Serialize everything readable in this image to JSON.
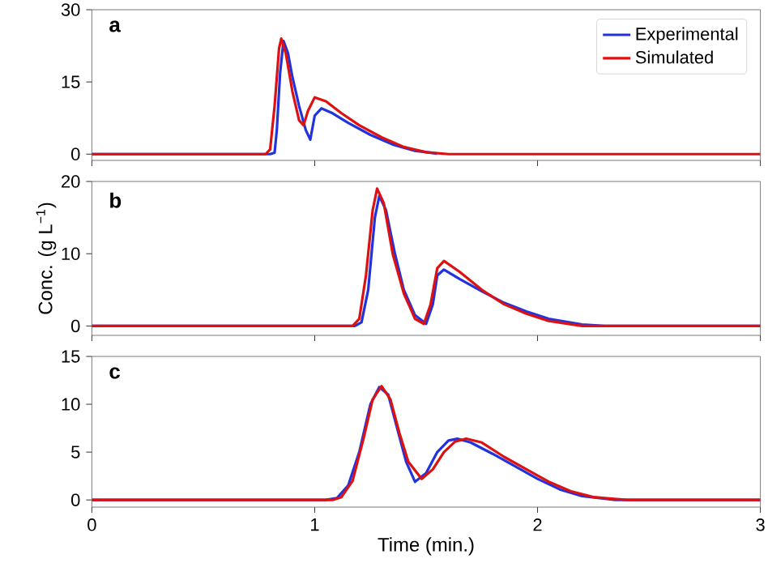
{
  "chart_data": [
    {
      "type": "line",
      "annotations": [
        "a"
      ],
      "xlim": [
        0,
        3
      ],
      "xticks": [
        0,
        1,
        2,
        3
      ],
      "ylim": [
        -1.3,
        30
      ],
      "yticks": [
        0,
        15,
        30
      ],
      "tick_labels": "y",
      "legend": "top right",
      "line_style": "solid",
      "series": [
        {
          "name": "Experimental",
          "color": "#2233dd",
          "x": [
            0,
            0.8,
            0.82,
            0.83,
            0.845,
            0.86,
            0.88,
            0.9,
            0.93,
            0.96,
            0.98,
            1.0,
            1.03,
            1.08,
            1.15,
            1.25,
            1.35,
            1.45,
            1.55
          ],
          "values": [
            0,
            0,
            0.3,
            5,
            17,
            23.5,
            21,
            16,
            10,
            5,
            3,
            8,
            9.5,
            8.5,
            6.5,
            4,
            2,
            0.7,
            0.1
          ]
        },
        {
          "name": "Simulated",
          "color": "#dd1111",
          "x": [
            0,
            0.78,
            0.8,
            0.82,
            0.84,
            0.85,
            0.87,
            0.9,
            0.93,
            0.95,
            0.97,
            1.0,
            1.05,
            1.12,
            1.2,
            1.3,
            1.4,
            1.5,
            1.6,
            3
          ],
          "values": [
            0,
            0,
            1,
            10,
            22,
            24,
            21,
            13,
            7,
            6,
            9,
            11.8,
            11,
            8.5,
            6,
            3.5,
            1.5,
            0.4,
            0,
            0
          ]
        }
      ]
    },
    {
      "type": "line",
      "annotations": [
        "b"
      ],
      "ylabel": "Conc. (g L$^{−1}$)",
      "xlim": [
        0,
        3
      ],
      "xticks": [
        0,
        1,
        2,
        3
      ],
      "ylim": [
        -1.3,
        20
      ],
      "yticks": [
        0,
        10,
        20
      ],
      "tick_labels": "y",
      "line_style": "solid",
      "series": [
        {
          "color": "#2233dd",
          "x": [
            0,
            1.18,
            1.21,
            1.24,
            1.27,
            1.29,
            1.32,
            1.36,
            1.4,
            1.45,
            1.5,
            1.53,
            1.55,
            1.58,
            1.65,
            1.75,
            1.85,
            1.95,
            2.05,
            2.2,
            2.3,
            3
          ],
          "values": [
            0,
            0,
            0.5,
            5,
            15,
            18,
            16,
            10,
            5,
            1.5,
            0.3,
            3,
            7,
            7.8,
            6.5,
            4.8,
            3.2,
            2,
            1,
            0.2,
            0,
            0
          ]
        },
        {
          "color": "#dd1111",
          "x": [
            0,
            1.17,
            1.2,
            1.23,
            1.26,
            1.28,
            1.31,
            1.35,
            1.4,
            1.45,
            1.49,
            1.52,
            1.55,
            1.58,
            1.65,
            1.75,
            1.85,
            1.95,
            2.05,
            2.2,
            3
          ],
          "values": [
            0,
            0,
            1,
            7,
            16,
            19,
            17,
            10,
            4.5,
            1,
            0.3,
            3,
            8,
            9,
            7.5,
            5,
            3,
            1.7,
            0.7,
            0,
            0
          ]
        }
      ]
    },
    {
      "type": "line",
      "annotations": [
        "c"
      ],
      "xlabel": "Time (min.)",
      "xlim": [
        0,
        3
      ],
      "xticks": [
        0,
        1,
        2,
        3
      ],
      "ylim": [
        -0.75,
        15
      ],
      "yticks": [
        0,
        5,
        10,
        15
      ],
      "line_style": "solid",
      "series": [
        {
          "color": "#2233dd",
          "x": [
            0,
            1.05,
            1.1,
            1.15,
            1.2,
            1.25,
            1.29,
            1.33,
            1.37,
            1.41,
            1.45,
            1.5,
            1.55,
            1.6,
            1.64,
            1.7,
            1.8,
            1.9,
            2.0,
            2.1,
            2.2,
            2.35,
            3
          ],
          "values": [
            0,
            0,
            0.2,
            1.5,
            5,
            10,
            11.8,
            11,
            7.5,
            4,
            1.9,
            2.8,
            5,
            6.2,
            6.4,
            6,
            4.8,
            3.5,
            2.2,
            1.1,
            0.4,
            0,
            0
          ]
        },
        {
          "color": "#dd1111",
          "x": [
            0,
            1.08,
            1.12,
            1.17,
            1.22,
            1.26,
            1.3,
            1.34,
            1.38,
            1.42,
            1.48,
            1.53,
            1.58,
            1.63,
            1.68,
            1.75,
            1.85,
            1.95,
            2.05,
            2.15,
            2.25,
            2.4,
            3
          ],
          "values": [
            0,
            0,
            0.3,
            2,
            6.5,
            10.5,
            11.9,
            10.5,
            7,
            4,
            2.2,
            3.2,
            5,
            6.1,
            6.4,
            6,
            4.5,
            3.2,
            1.9,
            0.9,
            0.3,
            0,
            0
          ]
        }
      ]
    }
  ]
}
